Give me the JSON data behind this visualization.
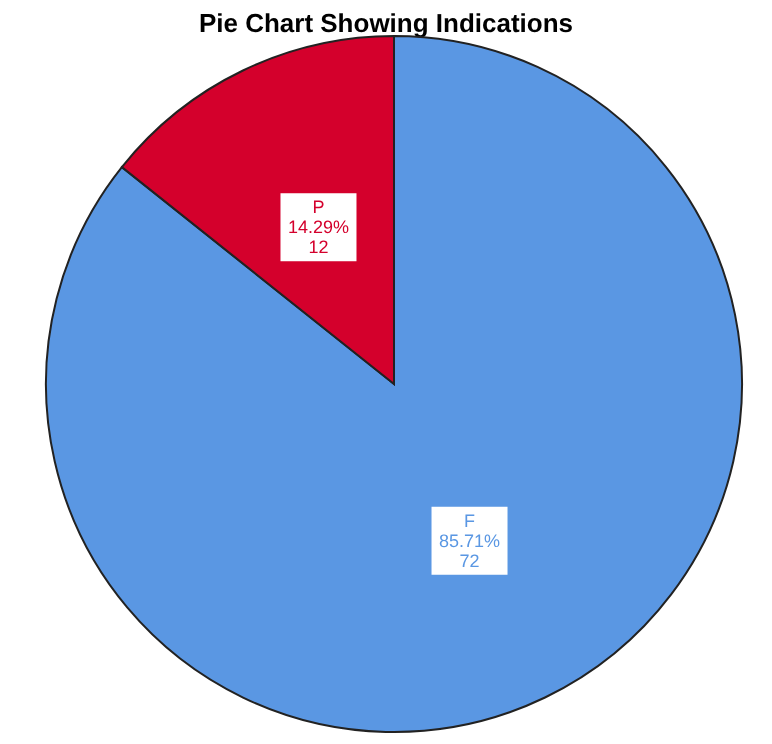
{
  "chart_data": {
    "type": "pie",
    "title": "Pie Chart Showing Indications",
    "categories": [
      "F",
      "P"
    ],
    "values": [
      85.71,
      14.29
    ],
    "colors": [
      "#5a97e3",
      "#d4002c"
    ],
    "value_labels": [
      "85.71%\n72",
      "14.29%\n12"
    ]
  }
}
